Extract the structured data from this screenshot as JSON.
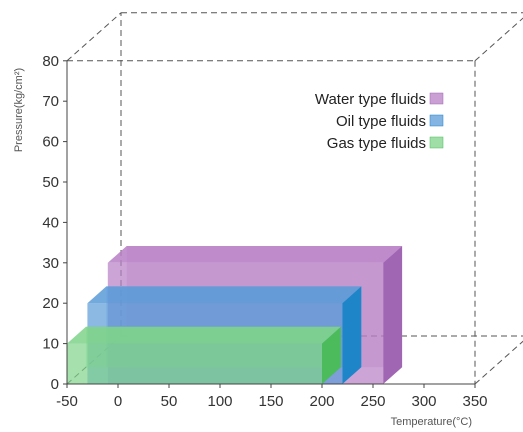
{
  "chart_data": {
    "type": "bar",
    "orientation": "horizontal-3d-range",
    "title": "",
    "xlabel": "Temperature(°C)",
    "ylabel": "Pressure(kg/cm²)",
    "xlim": [
      -50,
      350
    ],
    "ylim": [
      0,
      80
    ],
    "x_ticks": [
      -50,
      0,
      50,
      100,
      150,
      200,
      250,
      300,
      350
    ],
    "y_ticks": [
      0,
      10,
      20,
      30,
      40,
      50,
      60,
      70,
      80
    ],
    "x_tick_labels": [
      "-50",
      "0",
      "50",
      "100",
      "150",
      "200",
      "250",
      "300",
      "350"
    ],
    "y_tick_labels": [
      "0",
      "10",
      "20",
      "30",
      "40",
      "50",
      "60",
      "70",
      "80"
    ],
    "grid": false,
    "legend_position": "top-right",
    "series": [
      {
        "name": "Water type fluids",
        "x_range": [
          -10,
          260
        ],
        "y_range": [
          0,
          30
        ],
        "color": "#b77fc5",
        "side_color": "#a066b3"
      },
      {
        "name": "Oil type fluids",
        "x_range": [
          -30,
          220
        ],
        "y_range": [
          0,
          20
        ],
        "color": "#5b9bd8",
        "side_color": "#1e86c8"
      },
      {
        "name": "Gas type fluids",
        "x_range": [
          -50,
          200
        ],
        "y_range": [
          0,
          10
        ],
        "color": "#7fd38a",
        "side_color": "#4cbb5c"
      }
    ]
  }
}
